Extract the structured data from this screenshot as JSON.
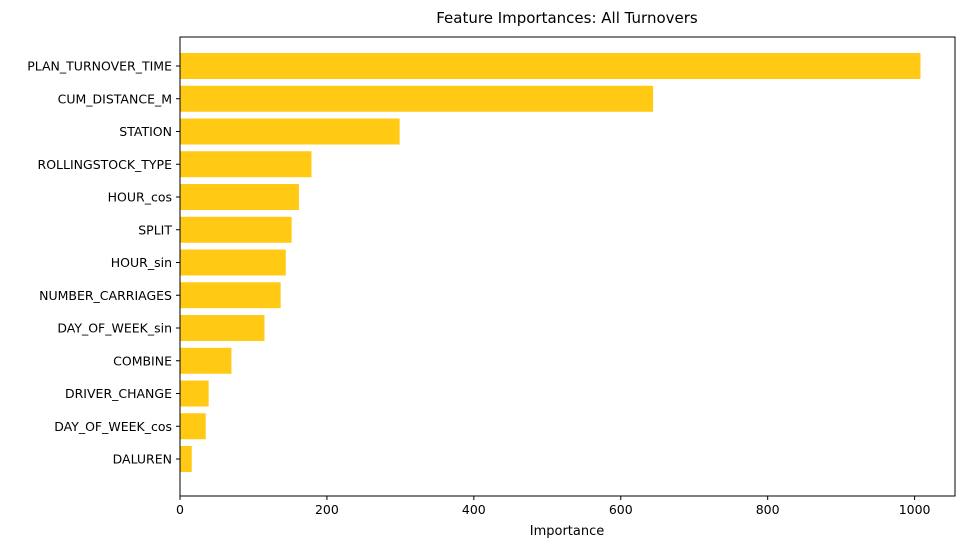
{
  "chart_data": {
    "type": "bar",
    "orientation": "horizontal",
    "title": "Feature Importances: All Turnovers",
    "xlabel": "Importance",
    "ylabel": "",
    "xlim": [
      0,
      1055
    ],
    "xticks": [
      0,
      200,
      400,
      600,
      800,
      1000
    ],
    "grid": false,
    "bar_color": "#ffc914",
    "categories": [
      "PLAN_TURNOVER_TIME",
      "CUM_DISTANCE_M",
      "STATION",
      "ROLLINGSTOCK_TYPE",
      "HOUR_cos",
      "SPLIT",
      "HOUR_sin",
      "NUMBER_CARRIAGES",
      "DAY_OF_WEEK_sin",
      "COMBINE",
      "DRIVER_CHANGE",
      "DAY_OF_WEEK_cos",
      "DALUREN"
    ],
    "values": [
      1008,
      644,
      299,
      179,
      162,
      152,
      144,
      137,
      115,
      70,
      39,
      35,
      16
    ]
  }
}
